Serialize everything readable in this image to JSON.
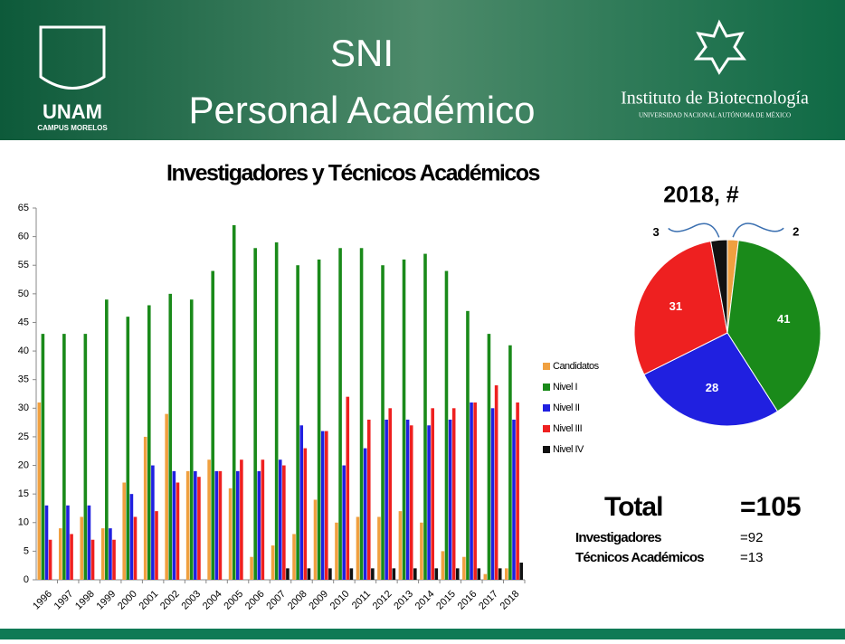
{
  "header": {
    "title_line1": "SNI",
    "title_line2": "Personal Académico",
    "left_logo": "UNAM",
    "left_logo_sub": "CAMPUS MORELOS",
    "right_logo": "Instituto de Biotecnología",
    "right_logo_sub": "UNIVERSIDAD NACIONAL AUTÓNOMA DE MÉXICO"
  },
  "chart_data": [
    {
      "type": "bar",
      "title": "Investigadores y Técnicos Académicos",
      "categories": [
        "1996",
        "1997",
        "1998",
        "1999",
        "2000",
        "2001",
        "2002",
        "2003",
        "2004",
        "2005",
        "2006",
        "2007",
        "2008",
        "2009",
        "2010",
        "2011",
        "2012",
        "2013",
        "2014",
        "2015",
        "2016",
        "2017",
        "2018"
      ],
      "series": [
        {
          "name": "Candidatos",
          "color": "#f0a040",
          "values": [
            31,
            9,
            11,
            9,
            17,
            25,
            29,
            19,
            21,
            16,
            4,
            6,
            8,
            14,
            10,
            11,
            11,
            12,
            10,
            5,
            4,
            1,
            2
          ]
        },
        {
          "name": "Nivel I",
          "color": "#1a8a1a",
          "values": [
            43,
            43,
            43,
            49,
            46,
            48,
            50,
            49,
            54,
            62,
            58,
            59,
            55,
            56,
            58,
            58,
            55,
            56,
            57,
            54,
            47,
            43,
            41
          ]
        },
        {
          "name": "Nivel II",
          "color": "#2020e0",
          "values": [
            13,
            13,
            13,
            9,
            15,
            20,
            19,
            19,
            19,
            19,
            19,
            21,
            27,
            26,
            20,
            23,
            28,
            28,
            27,
            28,
            31,
            30,
            28
          ]
        },
        {
          "name": "Nivel III",
          "color": "#ee2020",
          "values": [
            7,
            8,
            7,
            7,
            11,
            12,
            17,
            18,
            19,
            21,
            21,
            20,
            23,
            26,
            32,
            28,
            30,
            27,
            30,
            30,
            31,
            34,
            31
          ]
        },
        {
          "name": "Nivel IV",
          "color": "#111111",
          "values": [
            0,
            0,
            0,
            0,
            0,
            0,
            0,
            0,
            0,
            0,
            0,
            2,
            2,
            2,
            2,
            2,
            2,
            2,
            2,
            2,
            2,
            2,
            3
          ]
        }
      ],
      "ylim": [
        0,
        65
      ],
      "yticks": [
        0,
        5,
        10,
        15,
        20,
        25,
        30,
        35,
        40,
        45,
        50,
        55,
        60,
        65
      ],
      "grid": false,
      "legend": "right"
    },
    {
      "type": "pie",
      "title": "2018, #",
      "values": [
        2,
        41,
        28,
        31,
        3
      ],
      "colors": [
        "#f0a040",
        "#1a8a1a",
        "#2020e0",
        "#ee2020",
        "#111111"
      ]
    }
  ],
  "totals": {
    "total_label": "Total",
    "total_value": "=105",
    "rows": [
      [
        "Investigadores",
        "=92"
      ],
      [
        "Técnicos Académicos",
        "=13"
      ]
    ]
  }
}
